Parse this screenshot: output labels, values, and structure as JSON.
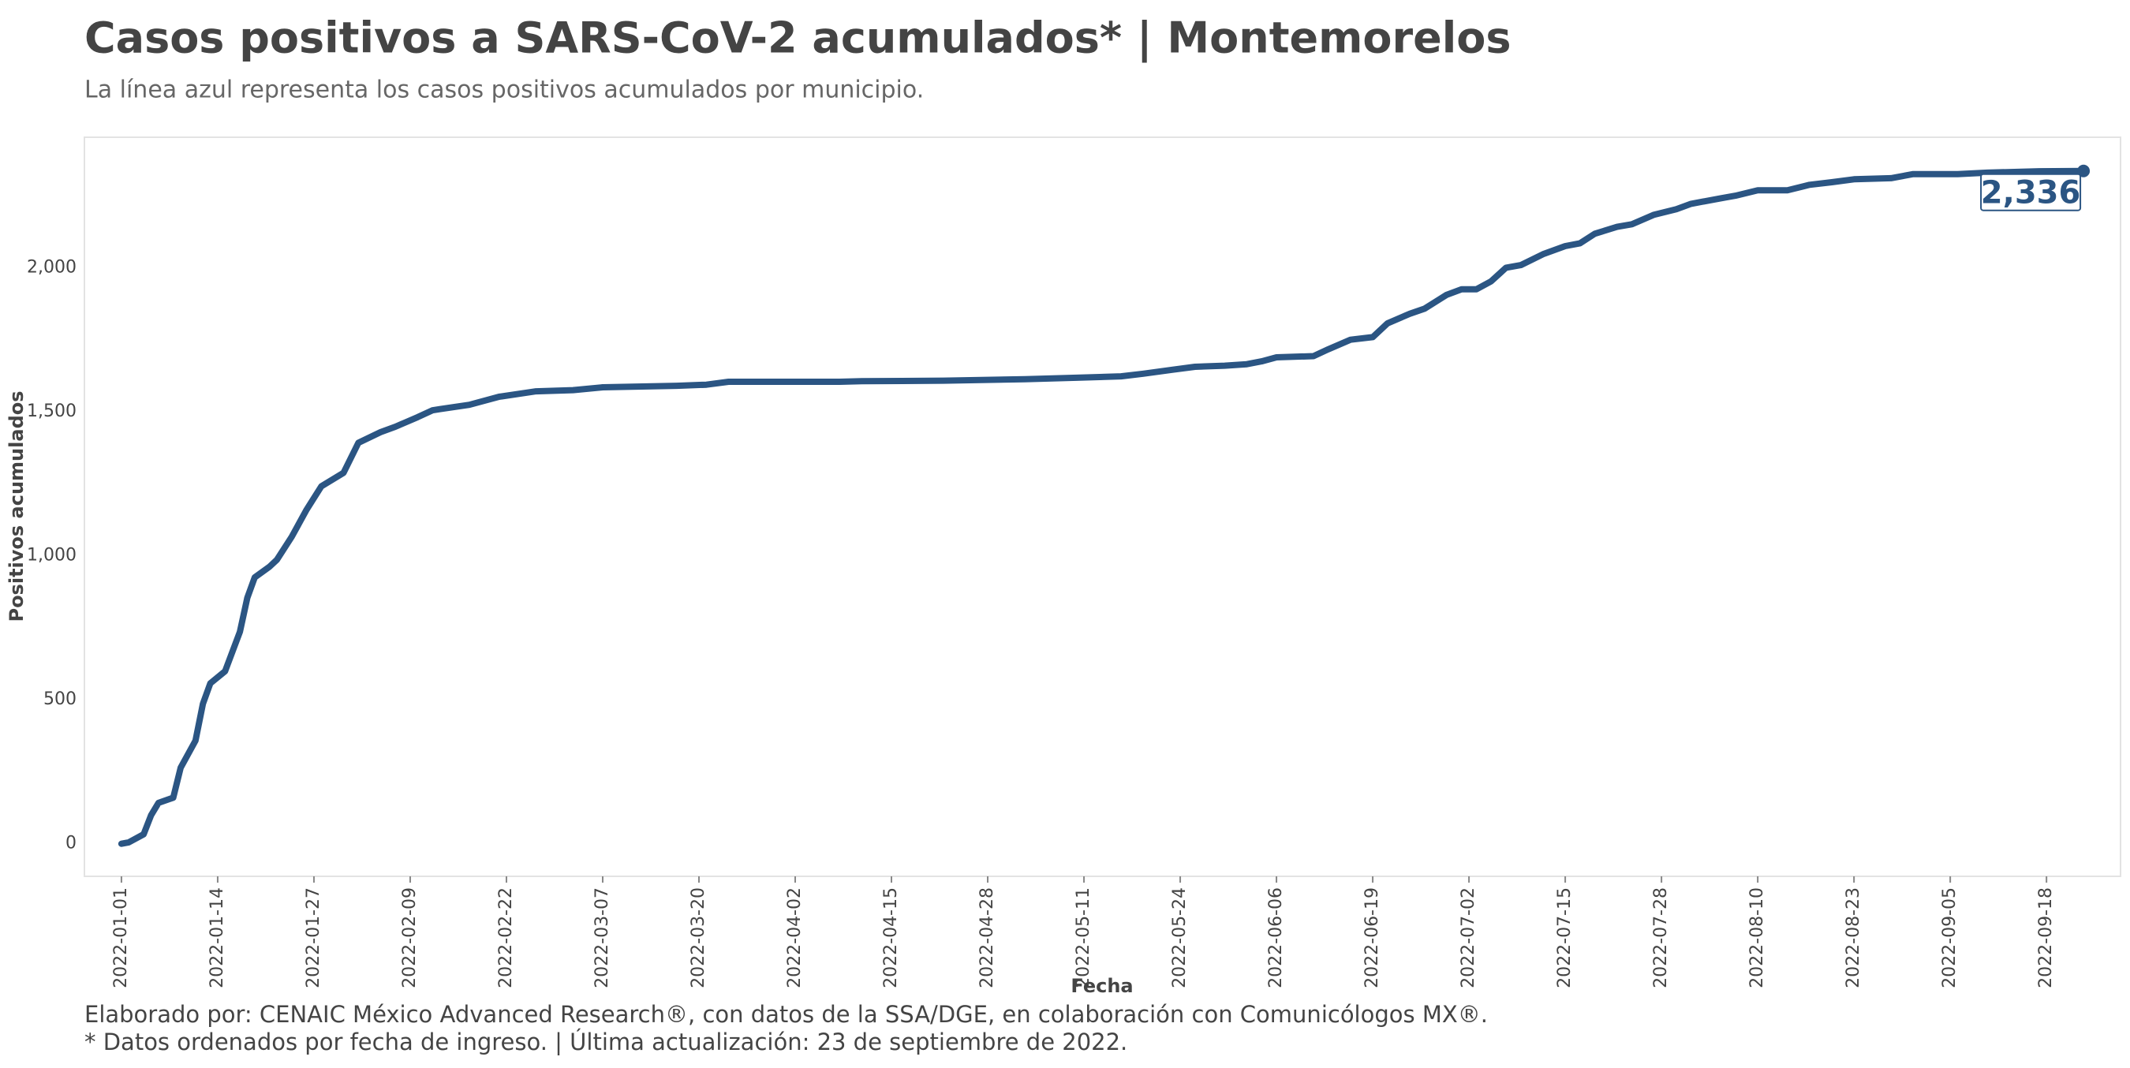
{
  "chart_data": {
    "type": "line",
    "title": "Casos positivos a SARS-CoV-2 acumulados* | Montemorelos",
    "subtitle": "La línea azul representa los casos positivos acumulados por municipio.",
    "x_label": "Fecha",
    "y_label": "Positivos acumulados",
    "footer": [
      "Elaborado por: CENAIC México Advanced Research®, con datos de la SSA/DGE, en colaboración con Comunicólogos MX®.",
      "* Datos ordenados por fecha de ingreso. | Última actualización: 23 de septiembre de 2022."
    ],
    "color": "#2b5583",
    "x": [
      "2022-01-01",
      "2022-01-02",
      "2022-01-04",
      "2022-01-05",
      "2022-01-06",
      "2022-01-08",
      "2022-01-09",
      "2022-01-11",
      "2022-01-12",
      "2022-01-13",
      "2022-01-15",
      "2022-01-17",
      "2022-01-18",
      "2022-01-19",
      "2022-01-21",
      "2022-01-22",
      "2022-01-24",
      "2022-01-26",
      "2022-01-28",
      "2022-01-31",
      "2022-02-02",
      "2022-02-05",
      "2022-02-07",
      "2022-02-10",
      "2022-02-12",
      "2022-02-13",
      "2022-02-17",
      "2022-02-21",
      "2022-02-26",
      "2022-03-03",
      "2022-03-07",
      "2022-03-17",
      "2022-03-21",
      "2022-03-24",
      "2022-04-08",
      "2022-04-11",
      "2022-04-22",
      "2022-05-03",
      "2022-05-10",
      "2022-05-16",
      "2022-05-19",
      "2022-05-23",
      "2022-05-26",
      "2022-05-30",
      "2022-06-02",
      "2022-06-04",
      "2022-06-06",
      "2022-06-11",
      "2022-06-13",
      "2022-06-16",
      "2022-06-19",
      "2022-06-21",
      "2022-06-24",
      "2022-06-26",
      "2022-06-29",
      "2022-07-01",
      "2022-07-03",
      "2022-07-05",
      "2022-07-07",
      "2022-07-09",
      "2022-07-12",
      "2022-07-15",
      "2022-07-17",
      "2022-07-19",
      "2022-07-22",
      "2022-07-24",
      "2022-07-27",
      "2022-07-30",
      "2022-08-01",
      "2022-08-05",
      "2022-08-07",
      "2022-08-10",
      "2022-08-14",
      "2022-08-17",
      "2022-08-20",
      "2022-08-23",
      "2022-08-28",
      "2022-08-31",
      "2022-09-06",
      "2022-09-10",
      "2022-09-17",
      "2022-09-23"
    ],
    "values": [
      0,
      5,
      33,
      99,
      142,
      160,
      264,
      358,
      486,
      557,
      599,
      736,
      854,
      925,
      962,
      986,
      1066,
      1160,
      1241,
      1288,
      1392,
      1429,
      1448,
      1481,
      1505,
      1509,
      1524,
      1552,
      1571,
      1575,
      1585,
      1590,
      1594,
      1604,
      1604,
      1606,
      1608,
      1613,
      1618,
      1623,
      1632,
      1646,
      1656,
      1660,
      1665,
      1675,
      1689,
      1693,
      1717,
      1750,
      1759,
      1807,
      1840,
      1858,
      1906,
      1925,
      1925,
      1953,
      2000,
      2009,
      2047,
      2075,
      2085,
      2118,
      2142,
      2151,
      2184,
      2203,
      2222,
      2241,
      2250,
      2269,
      2269,
      2288,
      2297,
      2307,
      2311,
      2325,
      2325,
      2330,
      2335,
      2336
    ],
    "end_label": "2,336",
    "xlim": [
      "2021-12-27",
      "2022-09-28"
    ],
    "xticks": [
      "2022-01-01",
      "2022-01-14",
      "2022-01-27",
      "2022-02-09",
      "2022-02-22",
      "2022-03-07",
      "2022-03-20",
      "2022-04-02",
      "2022-04-15",
      "2022-04-28",
      "2022-05-11",
      "2022-05-24",
      "2022-06-06",
      "2022-06-19",
      "2022-07-02",
      "2022-07-15",
      "2022-07-28",
      "2022-08-10",
      "2022-08-23",
      "2022-09-05",
      "2022-09-18"
    ],
    "ylim": [
      -113,
      2453
    ],
    "yticks": [
      0,
      500,
      {
        "value": 1000,
        "label": "1,000"
      },
      {
        "value": 1500,
        "label": "1,500"
      },
      {
        "value": 2000,
        "label": "2,000"
      }
    ]
  }
}
